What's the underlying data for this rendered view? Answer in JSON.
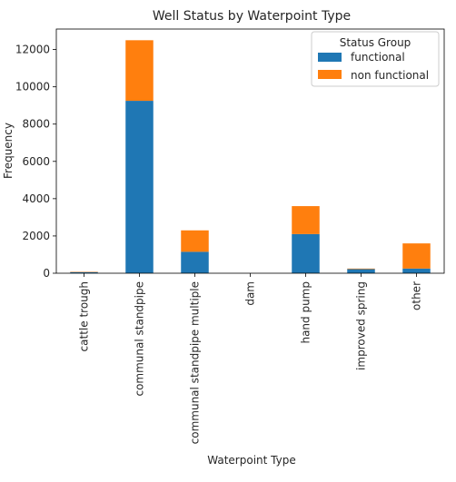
{
  "chart_data": {
    "type": "bar",
    "stacked": true,
    "title": "Well Status by Waterpoint Type",
    "xlabel": "Waterpoint Type",
    "ylabel": "Frequency",
    "ylim": [
      0,
      13100
    ],
    "yticks": [
      0,
      2000,
      4000,
      6000,
      8000,
      10000,
      12000
    ],
    "categories": [
      "cattle trough",
      "communal standpipe",
      "communal standpipe multiple",
      "dam",
      "hand pump",
      "improved spring",
      "other"
    ],
    "series": [
      {
        "name": "functional",
        "color": "#1f77b4",
        "values": [
          60,
          9250,
          1150,
          0,
          2100,
          220,
          250
        ]
      },
      {
        "name": "non functional",
        "color": "#ff7f0e",
        "values": [
          20,
          3250,
          1150,
          0,
          1500,
          30,
          1350
        ]
      }
    ],
    "legend": {
      "title": "Status Group",
      "placement": "top-right"
    },
    "grid": false
  }
}
